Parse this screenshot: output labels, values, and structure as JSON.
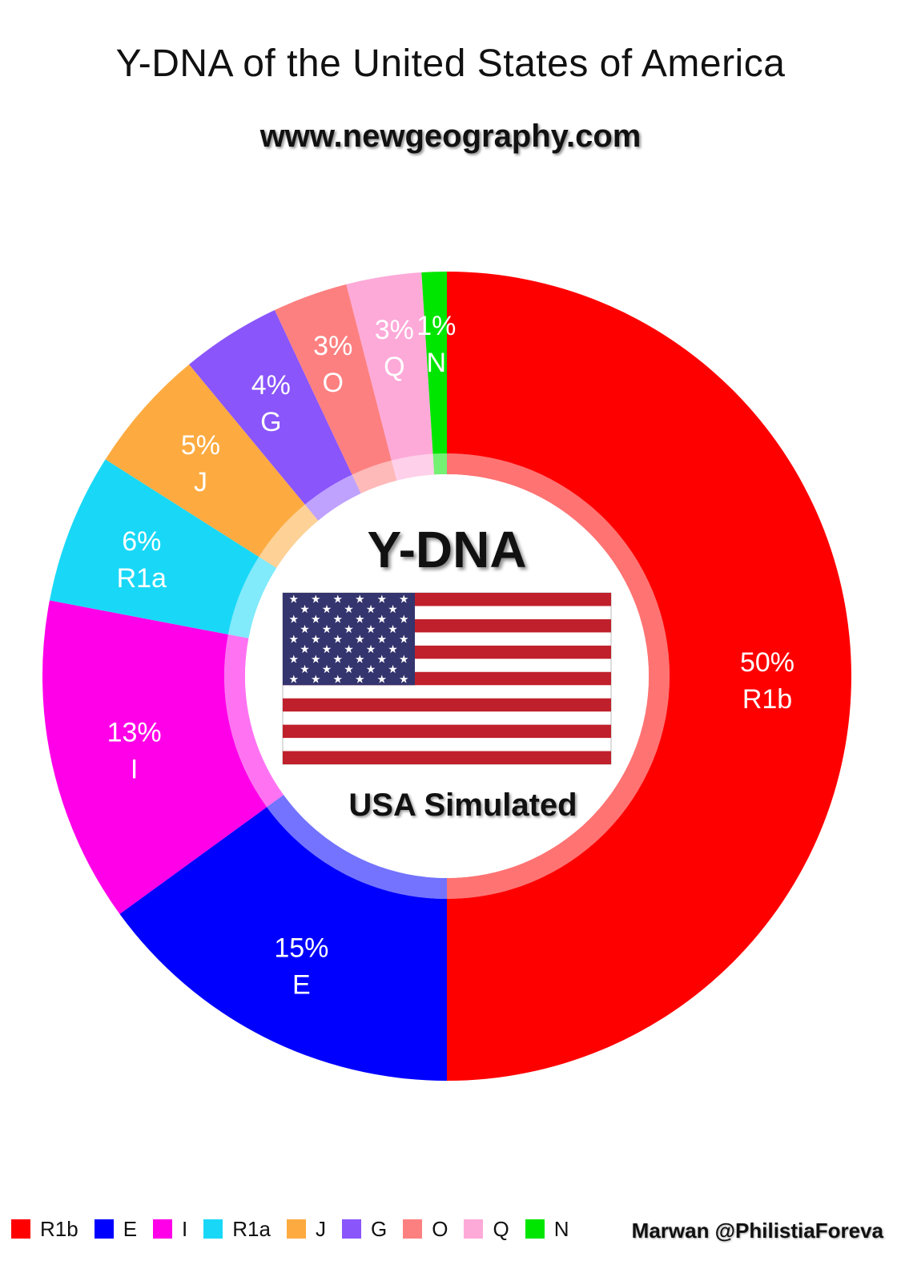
{
  "chart_data": {
    "type": "pie",
    "title": "Y-DNA of the United States of America",
    "subtitle": "www.newgeography.com",
    "center_title": "Y-DNA",
    "center_caption": "USA Simulated",
    "legend_placement": "bottom",
    "slices": [
      {
        "label": "R1b",
        "value": 50,
        "display": "50%",
        "color": "#ff0000"
      },
      {
        "label": "E",
        "value": 15,
        "display": "15%",
        "color": "#0000ff"
      },
      {
        "label": "I",
        "value": 13,
        "display": "13%",
        "color": "#ff00e8"
      },
      {
        "label": "R1a",
        "value": 6,
        "display": "6%",
        "color": "#19d8f7"
      },
      {
        "label": "J",
        "value": 5,
        "display": "5%",
        "color": "#fdab40"
      },
      {
        "label": "G",
        "value": 4,
        "display": "4%",
        "color": "#8a55fb"
      },
      {
        "label": "O",
        "value": 3,
        "display": "3%",
        "color": "#fd8080"
      },
      {
        "label": "Q",
        "value": 3,
        "display": "3%",
        "color": "#fdaad9"
      },
      {
        "label": "N",
        "value": 1,
        "display": "1%",
        "color": "#00e600"
      }
    ]
  },
  "center_icon": "us-flag-icon",
  "credit": "Marwan @PhilistiaForeva"
}
